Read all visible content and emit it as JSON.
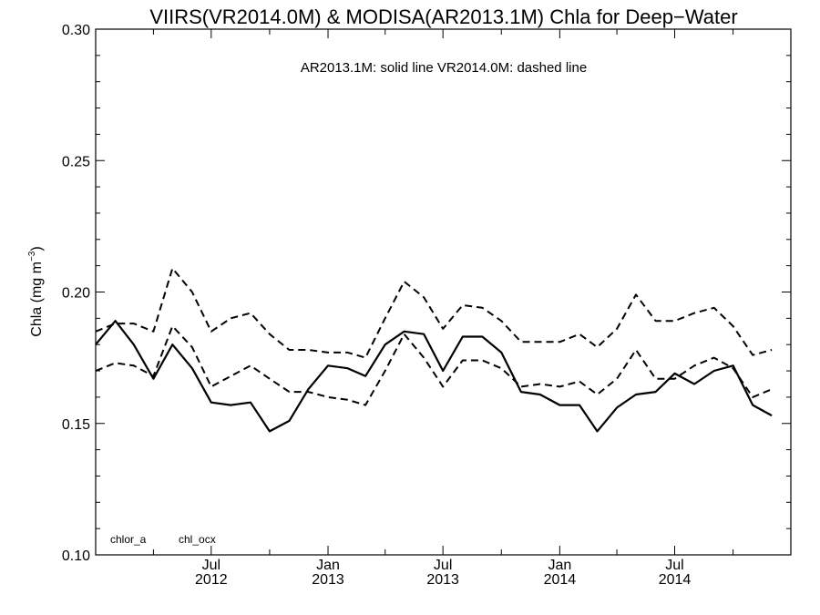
{
  "chart_data": {
    "type": "line",
    "title": "VIIRS(VR2014.0M) & MODISA(AR2013.1M)  Chla for Deep−Water",
    "annotation": "AR2013.1M: solid line   VR2014.0M: dashed line",
    "ylabel": "Chla (mg m",
    "ylabel_sup": "−3",
    "ylabel_close": ")",
    "ylim": [
      0.1,
      0.3
    ],
    "yticks": [
      {
        "value": 0.1,
        "label": "0.10"
      },
      {
        "value": 0.15,
        "label": "0.15"
      },
      {
        "value": 0.2,
        "label": "0.20"
      },
      {
        "value": 0.25,
        "label": "0.25"
      },
      {
        "value": 0.3,
        "label": "0.30"
      }
    ],
    "xlim": [
      "2012-01-01",
      "2014-12-31"
    ],
    "xticks": [
      {
        "date": "2012-07-01",
        "month": "Jul",
        "year": "2012"
      },
      {
        "date": "2013-01-01",
        "month": "Jan",
        "year": "2013"
      },
      {
        "date": "2013-07-01",
        "month": "Jul",
        "year": "2013"
      },
      {
        "date": "2014-01-01",
        "month": "Jan",
        "year": "2014"
      },
      {
        "date": "2014-07-01",
        "month": "Jul",
        "year": "2014"
      }
    ],
    "legend_labels": [
      "chlor_a",
      "chl_ocx"
    ],
    "series": [
      {
        "product": "AR2013.1M",
        "style": "solid",
        "points": [
          [
            "2012-01-01",
            0.18
          ],
          [
            "2012-02-01",
            0.189
          ],
          [
            "2012-03-01",
            0.18
          ],
          [
            "2012-04-01",
            0.167
          ],
          [
            "2012-05-01",
            0.18
          ],
          [
            "2012-06-01",
            0.171
          ],
          [
            "2012-07-01",
            0.158
          ],
          [
            "2012-08-01",
            0.157
          ],
          [
            "2012-09-01",
            0.158
          ],
          [
            "2012-10-01",
            0.147
          ],
          [
            "2012-11-01",
            0.151
          ],
          [
            "2012-12-01",
            0.163
          ],
          [
            "2013-01-01",
            0.172
          ],
          [
            "2013-02-01",
            0.171
          ],
          [
            "2013-03-01",
            0.168
          ],
          [
            "2013-04-01",
            0.18
          ],
          [
            "2013-05-01",
            0.185
          ],
          [
            "2013-06-01",
            0.184
          ],
          [
            "2013-07-01",
            0.17
          ],
          [
            "2013-08-01",
            0.183
          ],
          [
            "2013-09-01",
            0.183
          ],
          [
            "2013-10-01",
            0.177
          ],
          [
            "2013-11-01",
            0.162
          ],
          [
            "2013-12-01",
            0.161
          ],
          [
            "2014-01-01",
            0.157
          ],
          [
            "2014-02-01",
            0.157
          ],
          [
            "2014-03-01",
            0.147
          ],
          [
            "2014-04-01",
            0.156
          ],
          [
            "2014-05-01",
            0.161
          ],
          [
            "2014-06-01",
            0.162
          ],
          [
            "2014-07-01",
            0.169
          ],
          [
            "2014-08-01",
            0.165
          ],
          [
            "2014-09-01",
            0.17
          ],
          [
            "2014-10-01",
            0.172
          ],
          [
            "2014-11-01",
            0.157
          ],
          [
            "2014-12-01",
            0.153
          ]
        ]
      },
      {
        "product": "VR2014.0M",
        "style": "dashed",
        "points": [
          [
            "2012-01-01",
            0.185
          ],
          [
            "2012-02-01",
            0.188
          ],
          [
            "2012-03-01",
            0.188
          ],
          [
            "2012-04-01",
            0.185
          ],
          [
            "2012-05-01",
            0.209
          ],
          [
            "2012-06-01",
            0.2
          ],
          [
            "2012-07-01",
            0.185
          ],
          [
            "2012-08-01",
            0.19
          ],
          [
            "2012-09-01",
            0.192
          ],
          [
            "2012-10-01",
            0.184
          ],
          [
            "2012-11-01",
            0.178
          ],
          [
            "2012-12-01",
            0.178
          ],
          [
            "2013-01-01",
            0.177
          ],
          [
            "2013-02-01",
            0.177
          ],
          [
            "2013-03-01",
            0.175
          ],
          [
            "2013-04-01",
            0.19
          ],
          [
            "2013-05-01",
            0.204
          ],
          [
            "2013-06-01",
            0.198
          ],
          [
            "2013-07-01",
            0.186
          ],
          [
            "2013-08-01",
            0.195
          ],
          [
            "2013-09-01",
            0.194
          ],
          [
            "2013-10-01",
            0.189
          ],
          [
            "2013-11-01",
            0.181
          ],
          [
            "2013-12-01",
            0.181
          ],
          [
            "2014-01-01",
            0.181
          ],
          [
            "2014-02-01",
            0.184
          ],
          [
            "2014-03-01",
            0.179
          ],
          [
            "2014-04-01",
            0.186
          ],
          [
            "2014-05-01",
            0.199
          ],
          [
            "2014-06-01",
            0.189
          ],
          [
            "2014-07-01",
            0.189
          ],
          [
            "2014-08-01",
            0.192
          ],
          [
            "2014-09-01",
            0.194
          ],
          [
            "2014-10-01",
            0.187
          ],
          [
            "2014-11-01",
            0.176
          ],
          [
            "2014-12-01",
            0.178
          ]
        ]
      },
      {
        "product": "VR2014.0M",
        "style": "dashed",
        "points": [
          [
            "2012-01-01",
            0.17
          ],
          [
            "2012-02-01",
            0.173
          ],
          [
            "2012-03-01",
            0.172
          ],
          [
            "2012-04-01",
            0.168
          ],
          [
            "2012-05-01",
            0.187
          ],
          [
            "2012-06-01",
            0.179
          ],
          [
            "2012-07-01",
            0.164
          ],
          [
            "2012-08-01",
            0.168
          ],
          [
            "2012-09-01",
            0.172
          ],
          [
            "2012-10-01",
            0.167
          ],
          [
            "2012-11-01",
            0.162
          ],
          [
            "2012-12-01",
            0.162
          ],
          [
            "2013-01-01",
            0.16
          ],
          [
            "2013-02-01",
            0.159
          ],
          [
            "2013-03-01",
            0.157
          ],
          [
            "2013-04-01",
            0.17
          ],
          [
            "2013-05-01",
            0.184
          ],
          [
            "2013-06-01",
            0.175
          ],
          [
            "2013-07-01",
            0.164
          ],
          [
            "2013-08-01",
            0.174
          ],
          [
            "2013-09-01",
            0.174
          ],
          [
            "2013-10-01",
            0.171
          ],
          [
            "2013-11-01",
            0.164
          ],
          [
            "2013-12-01",
            0.165
          ],
          [
            "2014-01-01",
            0.164
          ],
          [
            "2014-02-01",
            0.166
          ],
          [
            "2014-03-01",
            0.161
          ],
          [
            "2014-04-01",
            0.167
          ],
          [
            "2014-05-01",
            0.178
          ],
          [
            "2014-06-01",
            0.167
          ],
          [
            "2014-07-01",
            0.167
          ],
          [
            "2014-08-01",
            0.172
          ],
          [
            "2014-09-01",
            0.175
          ],
          [
            "2014-10-01",
            0.171
          ],
          [
            "2014-11-01",
            0.16
          ],
          [
            "2014-12-01",
            0.163
          ]
        ]
      }
    ],
    "grid": false,
    "legend_position": "bottom-left"
  }
}
